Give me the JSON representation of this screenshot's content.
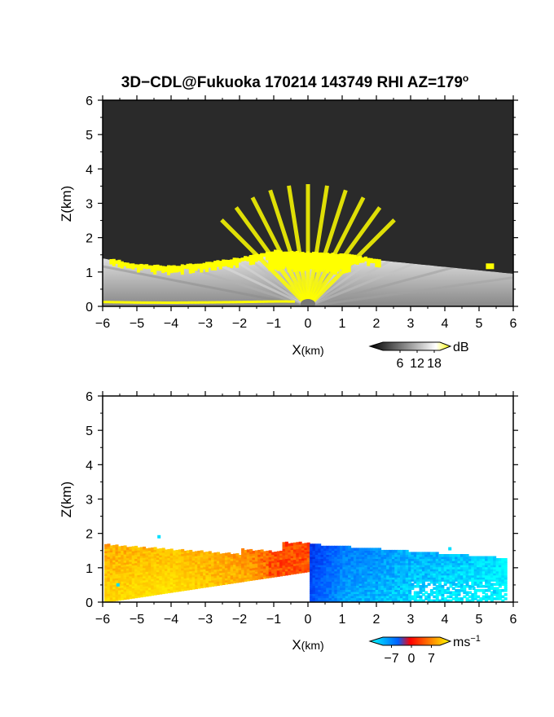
{
  "figure": {
    "title": "3D−CDL@Fukuoka 170214 143749 RHI AZ=179",
    "title_sup": "o"
  },
  "chart_data": [
    {
      "type": "heatmap",
      "panel": "snr",
      "xlabel_main": "X",
      "xlabel_unit": "(km)",
      "ylabel": "Z(km)",
      "xlim": [
        -6,
        6
      ],
      "ylim": [
        0,
        6
      ],
      "x_ticks": [
        -6,
        -5,
        -4,
        -3,
        -2,
        -1,
        0,
        1,
        2,
        3,
        4,
        5,
        6
      ],
      "y_ticks": [
        0,
        1,
        2,
        3,
        4,
        5,
        6
      ],
      "x_tick_labels": [
        "−6",
        "−5",
        "−4",
        "−3",
        "−2",
        "−1",
        "0",
        "1",
        "2",
        "3",
        "4",
        "5",
        "6"
      ],
      "y_tick_labels": [
        "0",
        "1",
        "2",
        "3",
        "4",
        "5",
        "6"
      ],
      "background_color": "#2a2a2a",
      "colormap": "gray-to-yellow",
      "colorbar": {
        "range": [
          0,
          20
        ],
        "ticks": [
          6,
          12,
          18
        ],
        "tick_labels": [
          "6",
          "12",
          "18"
        ],
        "unit": "dB",
        "colors": [
          "#000000",
          "#ffffff",
          "#ffff00"
        ]
      },
      "echo_top_km": [
        {
          "x": -6.0,
          "z": 1.4
        },
        {
          "x": -5.0,
          "z": 1.2
        },
        {
          "x": -4.0,
          "z": 1.15
        },
        {
          "x": -3.0,
          "z": 1.25
        },
        {
          "x": -2.0,
          "z": 1.4
        },
        {
          "x": -1.0,
          "z": 1.6
        },
        {
          "x": 0.0,
          "z": 1.55
        },
        {
          "x": 1.0,
          "z": 1.5
        },
        {
          "x": 2.0,
          "z": 1.35
        },
        {
          "x": 3.0,
          "z": 1.25
        },
        {
          "x": 4.0,
          "z": 1.15
        },
        {
          "x": 5.0,
          "z": 1.05
        },
        {
          "x": 6.0,
          "z": 0.95
        }
      ]
    },
    {
      "type": "heatmap",
      "panel": "doppler_velocity",
      "xlabel_main": "X",
      "xlabel_unit": "(km)",
      "ylabel": "Z(km)",
      "xlim": [
        -6,
        6
      ],
      "ylim": [
        0,
        6
      ],
      "x_ticks": [
        -6,
        -5,
        -4,
        -3,
        -2,
        -1,
        0,
        1,
        2,
        3,
        4,
        5,
        6
      ],
      "y_ticks": [
        0,
        1,
        2,
        3,
        4,
        5,
        6
      ],
      "x_tick_labels": [
        "−6",
        "−5",
        "−4",
        "−3",
        "−2",
        "−1",
        "0",
        "1",
        "2",
        "3",
        "4",
        "5",
        "6"
      ],
      "y_tick_labels": [
        "0",
        "1",
        "2",
        "3",
        "4",
        "5",
        "6"
      ],
      "background_color": "#ffffff",
      "colormap": "cyan-blue-red-yellow",
      "colorbar": {
        "range": [
          -10,
          10
        ],
        "ticks": [
          -7,
          0,
          7
        ],
        "tick_labels": [
          "−7",
          "0",
          "7"
        ],
        "unit_main": "ms",
        "unit_sup": "−1",
        "colors": [
          "#00ffff",
          "#0060ff",
          "#ff0000",
          "#ff8000",
          "#ffff00"
        ]
      },
      "velocity_profile": [
        {
          "x": -6.0,
          "v_ms": 6
        },
        {
          "x": -4.0,
          "v_ms": 7
        },
        {
          "x": -2.0,
          "v_ms": 5
        },
        {
          "x": -1.0,
          "v_ms": 3
        },
        {
          "x": -0.5,
          "v_ms": 0.5
        },
        {
          "x": 0.0,
          "v_ms": -2
        },
        {
          "x": 1.0,
          "v_ms": -6
        },
        {
          "x": 3.0,
          "v_ms": -8
        },
        {
          "x": 5.0,
          "v_ms": -9
        },
        {
          "x": 6.0,
          "v_ms": -10
        }
      ]
    }
  ]
}
